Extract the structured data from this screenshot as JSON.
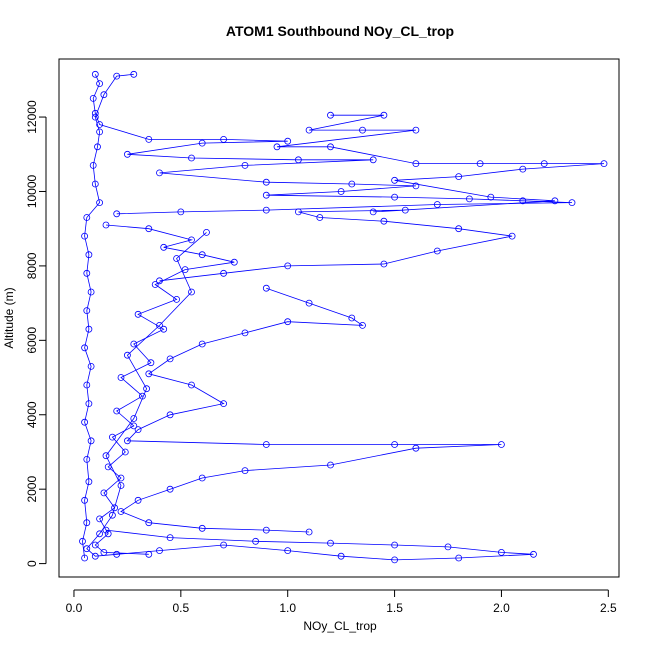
{
  "chart_data": {
    "type": "scatter",
    "title": "ATOM1 Southbound NOy_CL_trop",
    "xlabel": "NOy_CL_trop",
    "ylabel": "Altitude (m)",
    "xlim": [
      -0.07,
      2.55
    ],
    "ylim": [
      -360,
      13560
    ],
    "xticks": [
      0.0,
      0.5,
      1.0,
      1.5,
      2.0,
      2.5
    ],
    "xtick_labels": [
      "0.0",
      "0.5",
      "1.0",
      "1.5",
      "2.0",
      "2.5"
    ],
    "yticks": [
      0,
      2000,
      4000,
      6000,
      8000,
      10000,
      12000
    ],
    "ytick_labels": [
      "0",
      "2000",
      "4000",
      "6000",
      "8000",
      "10000",
      "12000"
    ],
    "grid": false,
    "legend": "none",
    "series": [
      {
        "color": "#0000ff",
        "marker": "open-circle",
        "line": true,
        "values": [
          [
            0.05,
            150
          ],
          [
            0.04,
            600
          ],
          [
            0.06,
            1100
          ],
          [
            0.05,
            1700
          ],
          [
            0.07,
            2200
          ],
          [
            0.06,
            2800
          ],
          [
            0.08,
            3300
          ],
          [
            0.05,
            3800
          ],
          [
            0.07,
            4300
          ],
          [
            0.06,
            4800
          ],
          [
            0.08,
            5300
          ],
          [
            0.05,
            5800
          ],
          [
            0.07,
            6300
          ],
          [
            0.06,
            6800
          ],
          [
            0.08,
            7300
          ],
          [
            0.06,
            7800
          ],
          [
            0.07,
            8300
          ],
          [
            0.05,
            8800
          ],
          [
            0.06,
            9300
          ],
          [
            0.12,
            9700
          ],
          [
            0.1,
            10200
          ],
          [
            0.09,
            10700
          ],
          [
            0.11,
            11200
          ],
          [
            0.12,
            11600
          ],
          [
            0.1,
            12000
          ],
          [
            0.14,
            12600
          ],
          [
            0.2,
            13100
          ],
          [
            0.28,
            13150
          ]
        ]
      },
      {
        "color": "#0000ff",
        "marker": "open-circle",
        "line": true,
        "values": [
          [
            0.1,
            13150
          ],
          [
            0.12,
            12900
          ],
          [
            0.09,
            12500
          ],
          [
            0.1,
            12100
          ],
          [
            0.12,
            11800
          ],
          [
            0.35,
            11400
          ],
          [
            0.7,
            11400
          ],
          [
            1.0,
            11350
          ],
          [
            0.6,
            11300
          ],
          [
            0.25,
            11000
          ],
          [
            0.55,
            10900
          ],
          [
            1.05,
            10850
          ],
          [
            1.4,
            10850
          ],
          [
            0.8,
            10700
          ],
          [
            0.4,
            10500
          ],
          [
            0.9,
            10250
          ],
          [
            1.3,
            10200
          ],
          [
            1.6,
            10150
          ],
          [
            1.25,
            10000
          ],
          [
            0.9,
            9900
          ],
          [
            1.5,
            9850
          ],
          [
            1.85,
            9800
          ],
          [
            2.1,
            9750
          ],
          [
            2.33,
            9700
          ],
          [
            1.7,
            9650
          ],
          [
            0.9,
            9500
          ],
          [
            0.5,
            9450
          ],
          [
            0.2,
            9400
          ]
        ]
      },
      {
        "color": "#0000ff",
        "marker": "open-circle",
        "line": true,
        "values": [
          [
            1.2,
            12050
          ],
          [
            1.45,
            12050
          ],
          [
            1.1,
            11650
          ],
          [
            1.35,
            11650
          ],
          [
            1.6,
            11650
          ],
          [
            0.95,
            11200
          ],
          [
            1.2,
            11200
          ],
          [
            1.6,
            10750
          ],
          [
            1.9,
            10750
          ],
          [
            2.2,
            10750
          ],
          [
            2.48,
            10750
          ],
          [
            2.1,
            10600
          ],
          [
            1.8,
            10400
          ],
          [
            1.5,
            10300
          ],
          [
            1.95,
            9850
          ],
          [
            2.25,
            9750
          ],
          [
            1.4,
            9450
          ],
          [
            1.55,
            9500
          ],
          [
            1.05,
            9450
          ],
          [
            1.15,
            9300
          ],
          [
            1.45,
            9200
          ],
          [
            1.8,
            9000
          ],
          [
            2.05,
            8800
          ],
          [
            1.7,
            8400
          ],
          [
            1.45,
            8050
          ],
          [
            1.0,
            8000
          ],
          [
            0.7,
            7800
          ],
          [
            0.4,
            7600
          ]
        ]
      },
      {
        "color": "#0000ff",
        "marker": "open-circle",
        "line": true,
        "values": [
          [
            0.9,
            7400
          ],
          [
            1.1,
            7000
          ],
          [
            1.3,
            6600
          ],
          [
            1.35,
            6400
          ],
          [
            1.0,
            6500
          ],
          [
            0.8,
            6200
          ],
          [
            0.6,
            5900
          ],
          [
            0.45,
            5500
          ],
          [
            0.35,
            5100
          ],
          [
            0.55,
            4800
          ],
          [
            0.7,
            4300
          ],
          [
            0.45,
            4000
          ],
          [
            0.3,
            3600
          ],
          [
            0.25,
            3300
          ],
          [
            0.9,
            3200
          ],
          [
            1.5,
            3200
          ],
          [
            2.0,
            3200
          ],
          [
            1.6,
            3100
          ],
          [
            1.2,
            2650
          ],
          [
            0.8,
            2500
          ],
          [
            0.6,
            2300
          ],
          [
            0.45,
            2000
          ],
          [
            0.3,
            1700
          ],
          [
            0.22,
            1400
          ],
          [
            0.35,
            1100
          ],
          [
            0.6,
            950
          ],
          [
            0.9,
            900
          ],
          [
            1.1,
            850
          ]
        ]
      },
      {
        "color": "#0000ff",
        "marker": "open-circle",
        "line": true,
        "values": [
          [
            0.15,
            900
          ],
          [
            0.45,
            700
          ],
          [
            0.85,
            600
          ],
          [
            1.2,
            550
          ],
          [
            1.5,
            500
          ],
          [
            1.75,
            450
          ],
          [
            2.0,
            300
          ],
          [
            2.15,
            250
          ],
          [
            1.8,
            150
          ],
          [
            1.5,
            100
          ],
          [
            1.25,
            200
          ],
          [
            1.0,
            350
          ],
          [
            0.7,
            500
          ],
          [
            0.4,
            350
          ],
          [
            0.2,
            250
          ],
          [
            0.1,
            200
          ],
          [
            0.06,
            400
          ],
          [
            0.12,
            800
          ],
          [
            0.18,
            1300
          ],
          [
            0.22,
            2100
          ],
          [
            0.15,
            2900
          ],
          [
            0.28,
            3900
          ],
          [
            0.34,
            4700
          ],
          [
            0.25,
            5600
          ],
          [
            0.4,
            6400
          ],
          [
            0.55,
            7300
          ],
          [
            0.48,
            8200
          ],
          [
            0.62,
            8900
          ]
        ]
      },
      {
        "color": "#0000ff",
        "marker": "open-circle",
        "line": true,
        "values": [
          [
            0.15,
            9100
          ],
          [
            0.35,
            9000
          ],
          [
            0.55,
            8700
          ],
          [
            0.42,
            8500
          ],
          [
            0.6,
            8300
          ],
          [
            0.75,
            8100
          ],
          [
            0.52,
            7900
          ],
          [
            0.38,
            7500
          ],
          [
            0.48,
            7100
          ],
          [
            0.3,
            6700
          ],
          [
            0.42,
            6300
          ],
          [
            0.28,
            5900
          ],
          [
            0.36,
            5400
          ],
          [
            0.22,
            5000
          ],
          [
            0.32,
            4500
          ],
          [
            0.2,
            4100
          ],
          [
            0.28,
            3700
          ],
          [
            0.18,
            3400
          ],
          [
            0.24,
            3000
          ],
          [
            0.16,
            2600
          ],
          [
            0.22,
            2300
          ],
          [
            0.14,
            1900
          ],
          [
            0.19,
            1500
          ],
          [
            0.12,
            1200
          ],
          [
            0.16,
            800
          ],
          [
            0.1,
            500
          ],
          [
            0.14,
            300
          ],
          [
            0.35,
            250
          ]
        ]
      }
    ]
  }
}
